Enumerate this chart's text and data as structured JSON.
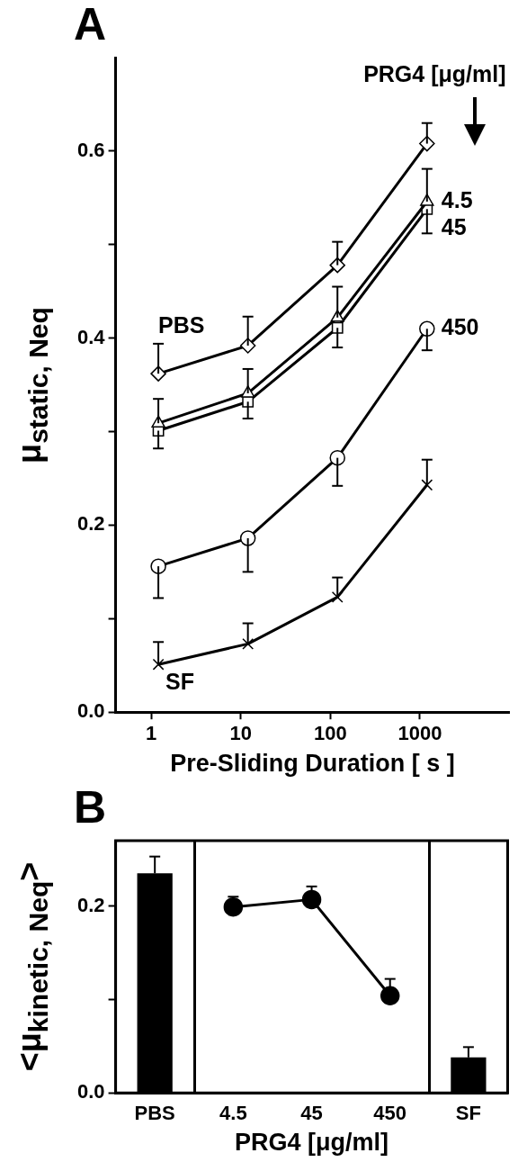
{
  "chart_data": [
    {
      "type": "line",
      "title": "A",
      "xlabel": "Pre-Sliding Duration [ s ]",
      "ylabel": "μ$_{static, Neq}$",
      "annotations": [
        "PRG4 [μg/ml]"
      ],
      "log": "x",
      "xlim": [
        0.4,
        10000
      ],
      "xticks": [
        1,
        10,
        100,
        1000
      ],
      "ylim": [
        0,
        0.7
      ],
      "yticks": [
        {
          "value": 0,
          "label": "0.0"
        },
        {
          "value": 0.1,
          "label": null
        },
        0.2,
        {
          "value": 0.3,
          "label": null
        },
        0.4,
        {
          "value": 0.5,
          "label": null
        },
        0.6
      ],
      "grid": false,
      "legend": false,
      "series": [
        {
          "name": "PBS",
          "color": "#000000",
          "marker": "diamond",
          "x": [
            1.2,
            12,
            120,
            1200
          ],
          "values": [
            0.362,
            0.392,
            0.478,
            0.608
          ],
          "errors": [
            [
              0.362,
              0.394
            ],
            [
              0.392,
              0.423
            ],
            [
              0.478,
              0.503
            ],
            [
              0.608,
              0.63
            ]
          ]
        },
        {
          "name": "4.5",
          "color": "#000000",
          "marker": "triangle",
          "x": [
            1.2,
            12,
            120,
            1200
          ],
          "values": [
            0.309,
            0.341,
            0.422,
            0.546
          ],
          "errors": [
            [
              0.309,
              0.335
            ],
            [
              0.341,
              0.367
            ],
            [
              0.422,
              0.455
            ],
            [
              0.546,
              0.581
            ]
          ]
        },
        {
          "name": "45",
          "color": "#000000",
          "marker": "square",
          "x": [
            1.2,
            12,
            120,
            1200
          ],
          "values": [
            0.301,
            0.332,
            0.411,
            0.538
          ],
          "errors": [
            [
              0.282,
              0.301
            ],
            [
              0.314,
              0.332
            ],
            [
              0.39,
              0.411
            ],
            [
              0.512,
              0.538
            ]
          ]
        },
        {
          "name": "450",
          "color": "#000000",
          "marker": "circle",
          "x": [
            1.2,
            12,
            120,
            1200
          ],
          "values": [
            0.156,
            0.186,
            0.272,
            0.41
          ],
          "errors": [
            [
              0.122,
              0.156
            ],
            [
              0.15,
              0.186
            ],
            [
              0.242,
              0.272
            ],
            [
              0.387,
              0.41
            ]
          ]
        },
        {
          "name": "SF",
          "color": "#000000",
          "marker": "cross",
          "x": [
            1.2,
            12,
            120,
            1200
          ],
          "values": [
            0.051,
            0.073,
            0.123,
            0.243
          ],
          "errors": [
            [
              0.051,
              0.075
            ],
            [
              0.073,
              0.095
            ],
            [
              0.123,
              0.144
            ],
            [
              0.243,
              0.27
            ]
          ]
        }
      ]
    },
    {
      "type": "bar",
      "title": "B",
      "xlabel": "PRG4 [μg/ml]",
      "ylabel": "<μ$_{kinetic, Neq}$>",
      "categories": [
        "PBS",
        "4.5",
        "45",
        "450",
        "SF"
      ],
      "ylim": [
        0,
        0.27
      ],
      "yticks": [
        {
          "value": 0,
          "label": "0.0"
        },
        {
          "value": 0.1,
          "label": null
        },
        0.2
      ],
      "grid": false,
      "legend": false,
      "series": [
        {
          "type": "bar",
          "color": "#000000",
          "values": [
            0.235,
            null,
            null,
            null,
            0.038
          ],
          "errors": [
            [
              0.235,
              0.253
            ],
            null,
            null,
            null,
            [
              0.038,
              0.049
            ]
          ]
        },
        {
          "type": "line",
          "color": "#000000",
          "marker": "circle",
          "values": [
            null,
            0.199,
            0.207,
            0.104,
            null
          ],
          "errors": [
            null,
            [
              0.199,
              0.21
            ],
            [
              0.207,
              0.221
            ],
            [
              0.104,
              0.122
            ],
            null
          ]
        }
      ]
    }
  ]
}
